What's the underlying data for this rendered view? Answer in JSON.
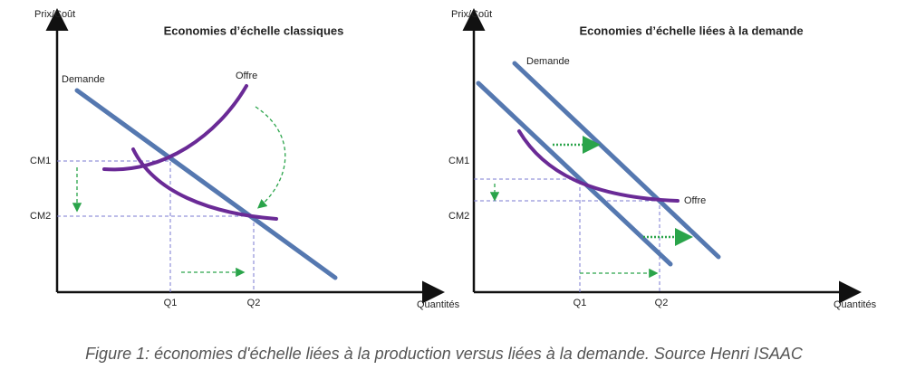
{
  "panels": [
    {
      "title": "Economies d’échelle classiques",
      "y_axis": "Prix/Coût",
      "x_axis": "Quantités",
      "labels": {
        "demand": "Demande",
        "supply": "Offre",
        "cm1": "CM1",
        "cm2": "CM2",
        "q1": "Q1",
        "q2": "Q2"
      }
    },
    {
      "title": "Economies d’échelle liées à la demande",
      "y_axis": "Prix/Coût",
      "x_axis": "Quantités",
      "labels": {
        "demand": "Demande",
        "supply": "Offre",
        "cm1": "CM1",
        "cm2": "CM2",
        "q1": "Q1",
        "q2": "Q2"
      }
    }
  ],
  "caption": "Figure 1: économies d'échelle liées à la production versus liées à la demande. Source Henri ISAAC"
}
